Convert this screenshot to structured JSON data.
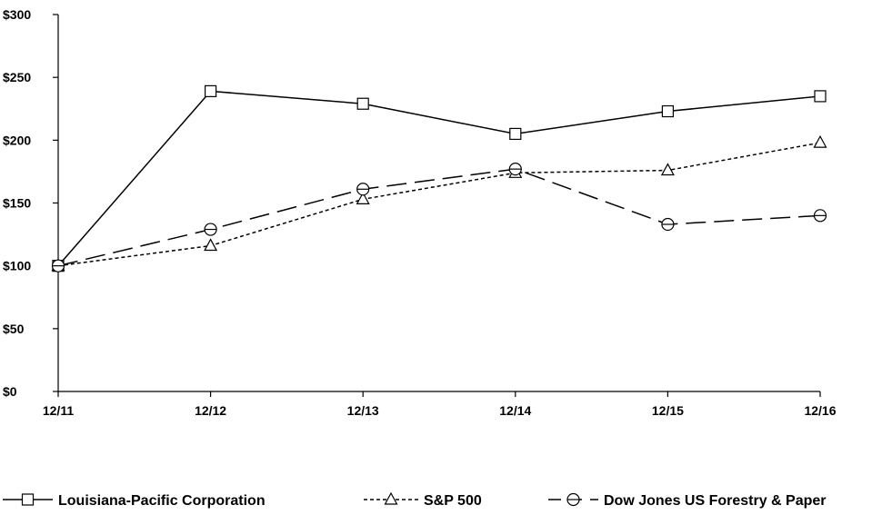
{
  "chart_data": {
    "type": "line",
    "title": "",
    "xlabel": "",
    "ylabel": "",
    "categories": [
      "12/11",
      "12/12",
      "12/13",
      "12/14",
      "12/15",
      "12/16"
    ],
    "y_ticks": [
      "$0",
      "$50",
      "$100",
      "$150",
      "$200",
      "$250",
      "$300"
    ],
    "ylim": [
      0,
      300
    ],
    "grid": false,
    "legend_position": "bottom",
    "series": [
      {
        "name": "Louisiana-Pacific Corporation",
        "marker": "square",
        "line_style": "solid",
        "color": "#000000",
        "values": [
          100,
          239,
          229,
          205,
          223,
          235
        ]
      },
      {
        "name": "S&P 500",
        "marker": "triangle",
        "line_style": "dotted",
        "color": "#000000",
        "values": [
          100,
          116,
          153,
          174,
          176,
          198
        ]
      },
      {
        "name": "Dow Jones US Forestry & Paper",
        "marker": "circle",
        "line_style": "dashed",
        "color": "#000000",
        "values": [
          100,
          129,
          161,
          177,
          133,
          140
        ]
      }
    ]
  }
}
